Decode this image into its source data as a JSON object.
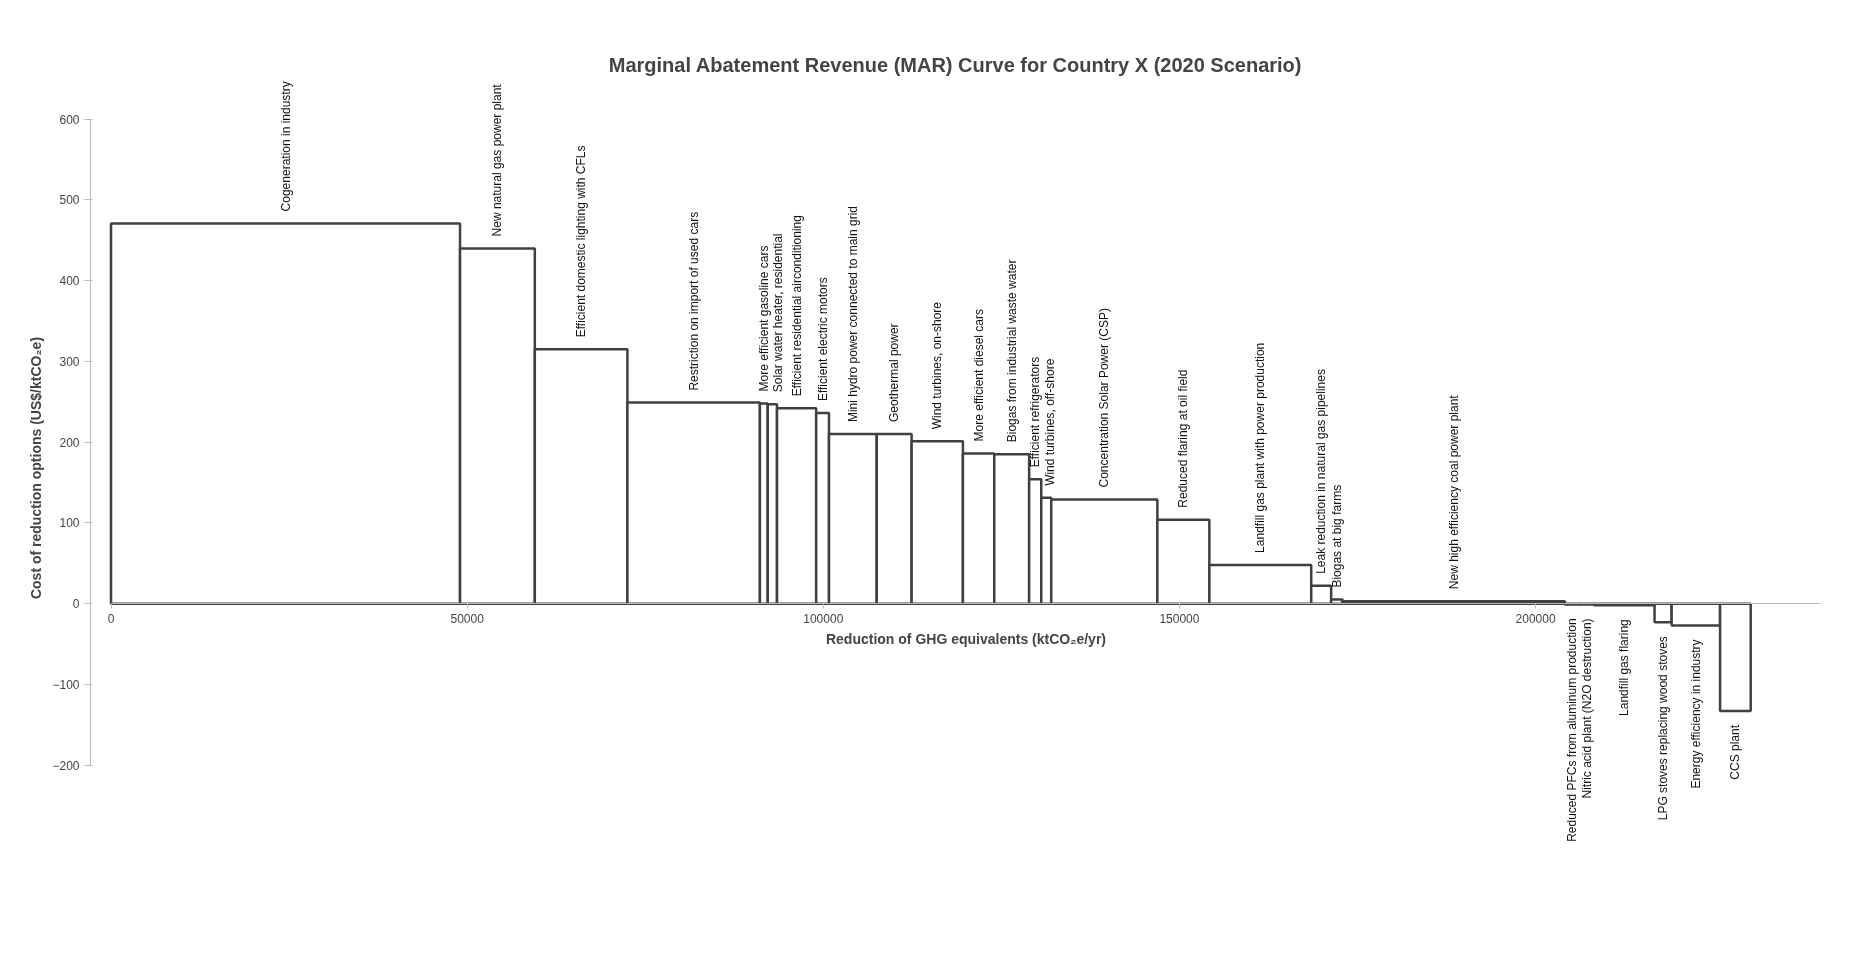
{
  "chart_data": {
    "type": "histogram",
    "title": "Marginal Abatement Revenue (MAR) Curve for Country X (2020 Scenario)",
    "xlabel": "Reduction of GHG equivalents (ktCO₂e/yr)",
    "ylabel": "Cost of reduction options (US$/ktCO₂e)",
    "categories": [
      "Cogeneration in industry",
      "New natural gas power plant",
      "Efficient domestic lighting with CFLs",
      "Restriction on import of used cars",
      "More efficient gasoline cars",
      "Solar water heater, residential",
      "Efficient residential airconditioning",
      "Efficient electric motors",
      "Mini hydro power connected to main grid",
      "Geothermal power",
      "Wind turbines, on-shore",
      "More efficient diesel cars",
      "Biogas from industrial waste water",
      "Efficient refrigerators",
      "Wind turbines, off-shore",
      "Concentration Solar Power (CSP)",
      "Reduced flaring at oil field",
      "Landfill gas plant with power production",
      "Leak reduction in natural gas pipelines",
      "Biogas at big farms",
      "New high efficiency coal power plant",
      "Reduced PFCs from aluminum production",
      "Nitric acid plant (N2O destruction)",
      "Landfill gas flaring",
      "LPG stoves replacing wood stoves",
      "Energy efficiency in industry",
      "CCS plant"
    ],
    "bins": [
      0,
      49000,
      59500,
      72500,
      91100,
      92200,
      93500,
      99000,
      100800,
      107500,
      112400,
      119600,
      124000,
      128900,
      130600,
      132000,
      146900,
      154200,
      168500,
      171300,
      172900,
      204100,
      206200,
      208200,
      216700,
      219100,
      225900,
      230200
    ],
    "values": [
      471,
      440,
      315,
      249,
      248,
      247,
      242,
      236,
      210,
      210,
      201,
      186,
      185,
      154,
      131,
      129,
      104,
      48,
      22,
      5,
      3,
      -1,
      -1,
      -2,
      -23,
      -27,
      -133
    ],
    "color": "#404040",
    "xlim": [
      0,
      240000
    ],
    "xticks": [
      0,
      50000,
      100000,
      150000,
      200000
    ],
    "ylim": [
      -200,
      600
    ],
    "yticks": [
      -200,
      -100,
      0,
      100,
      200,
      300,
      400,
      500,
      600
    ],
    "grid": false
  }
}
